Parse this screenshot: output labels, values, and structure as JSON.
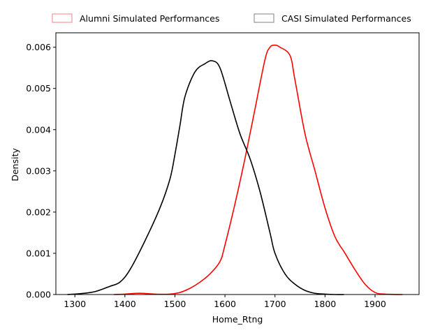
{
  "chart_data": {
    "type": "line",
    "title": "",
    "xlabel": "Home_Rtng",
    "ylabel": "Density",
    "xlim": [
      1262,
      1988
    ],
    "ylim": [
      0,
      0.00635
    ],
    "x_ticks": [
      1300,
      1400,
      1500,
      1600,
      1700,
      1800,
      1900
    ],
    "x_tick_labels": [
      "1300",
      "1400",
      "1500",
      "1600",
      "1700",
      "1800",
      "1900"
    ],
    "y_ticks": [
      0,
      0.001,
      0.002,
      0.003,
      0.004,
      0.005,
      0.006
    ],
    "y_tick_labels": [
      "0.000",
      "0.001",
      "0.002",
      "0.003",
      "0.004",
      "0.005",
      "0.006"
    ],
    "grid": false,
    "legend": {
      "placement": "top-center, above plot",
      "columns": 2
    },
    "series": [
      {
        "name": "Alumni Simulated Performances",
        "color": "#ff0000",
        "legend_edge_color": "#f08080",
        "x": [
          1378,
          1400,
          1430,
          1460,
          1490,
          1510,
          1530,
          1550,
          1570,
          1590,
          1600,
          1620,
          1640,
          1660,
          1680,
          1690,
          1700,
          1710,
          1730,
          1740,
          1760,
          1780,
          1800,
          1820,
          1840,
          1860,
          1880,
          1900,
          1920,
          1955
        ],
        "y": [
          0.0,
          1e-05,
          3e-05,
          1e-05,
          1e-05,
          5e-05,
          0.00015,
          0.0003,
          0.0005,
          0.0008,
          0.0012,
          0.0022,
          0.0033,
          0.0045,
          0.0057,
          0.006,
          0.00605,
          0.006,
          0.0058,
          0.0052,
          0.0039,
          0.003,
          0.0021,
          0.0014,
          0.001,
          0.0006,
          0.00025,
          5e-05,
          1e-05,
          0.0
        ]
      },
      {
        "name": "CASI Simulated Performances",
        "color": "#000000",
        "legend_edge_color": "#808080",
        "x": [
          1285,
          1310,
          1340,
          1370,
          1390,
          1410,
          1440,
          1470,
          1490,
          1500,
          1510,
          1520,
          1540,
          1560,
          1575,
          1590,
          1610,
          1630,
          1650,
          1670,
          1690,
          1700,
          1720,
          1740,
          1760,
          1780,
          1800,
          1820,
          1838
        ],
        "y": [
          0.0,
          2e-05,
          7e-05,
          0.0002,
          0.0003,
          0.0006,
          0.0013,
          0.0021,
          0.0028,
          0.0034,
          0.0041,
          0.0048,
          0.0054,
          0.0056,
          0.00567,
          0.0055,
          0.0047,
          0.0039,
          0.0033,
          0.0025,
          0.0015,
          0.001,
          0.0005,
          0.00025,
          0.0001,
          3e-05,
          1e-05,
          0.0,
          0.0
        ]
      }
    ]
  }
}
